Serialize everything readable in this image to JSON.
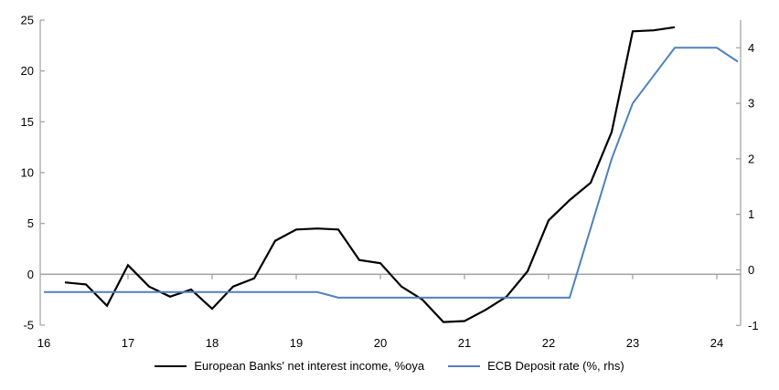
{
  "chart_data": {
    "type": "line",
    "grid": "zero-line-only",
    "legend_position": "bottom-center",
    "x_axis": {
      "ticks": [
        16,
        17,
        18,
        19,
        20,
        21,
        22,
        23,
        24
      ],
      "range": [
        16,
        24.3
      ]
    },
    "left_axis": {
      "ticks": [
        25,
        20,
        15,
        10,
        5,
        0,
        -5
      ],
      "range": [
        -5,
        25
      ]
    },
    "right_axis": {
      "ticks": [
        4,
        3,
        2,
        1,
        0,
        -1
      ],
      "range": [
        -1,
        4.5
      ]
    },
    "series": [
      {
        "name": "European Banks' net interest income, %oya",
        "axis": "left",
        "color": "#000000",
        "stroke_width": 2.2,
        "x": [
          16.25,
          16.5,
          16.75,
          17.0,
          17.25,
          17.5,
          17.75,
          18.0,
          18.25,
          18.5,
          18.75,
          19.0,
          19.25,
          19.5,
          19.75,
          20.0,
          20.25,
          20.5,
          20.75,
          21.0,
          21.25,
          21.5,
          21.75,
          22.0,
          22.25,
          22.5,
          22.75,
          23.0,
          23.25,
          23.5
        ],
        "values": [
          -0.8,
          -1.0,
          -3.1,
          0.9,
          -1.2,
          -2.2,
          -1.5,
          -3.4,
          -1.2,
          -0.4,
          3.3,
          4.4,
          4.5,
          4.4,
          1.4,
          1.1,
          -1.2,
          -2.5,
          -4.7,
          -4.6,
          -3.5,
          -2.2,
          0.3,
          5.3,
          7.3,
          9.0,
          14.0,
          23.9,
          24.0,
          24.3
        ]
      },
      {
        "name": "ECB Deposit rate (%, rhs)",
        "axis": "right",
        "color": "#4f81bd",
        "stroke_width": 2,
        "x": [
          16.0,
          16.25,
          16.5,
          16.75,
          17.0,
          17.25,
          17.5,
          17.75,
          18.0,
          18.25,
          18.5,
          18.75,
          19.0,
          19.25,
          19.5,
          19.75,
          20.0,
          20.25,
          20.5,
          20.75,
          21.0,
          21.25,
          21.5,
          21.75,
          22.0,
          22.25,
          22.5,
          22.75,
          23.0,
          23.25,
          23.5,
          23.75,
          24.0,
          24.25
        ],
        "values": [
          -0.4,
          -0.4,
          -0.4,
          -0.4,
          -0.4,
          -0.4,
          -0.4,
          -0.4,
          -0.4,
          -0.4,
          -0.4,
          -0.4,
          -0.4,
          -0.4,
          -0.5,
          -0.5,
          -0.5,
          -0.5,
          -0.5,
          -0.5,
          -0.5,
          -0.5,
          -0.5,
          -0.5,
          -0.5,
          -0.5,
          0.75,
          2.0,
          3.0,
          3.5,
          4.0,
          4.0,
          4.0,
          3.75
        ]
      }
    ]
  },
  "colors": {
    "axis_line": "#a6a6a6",
    "tick_text": "#000000",
    "background": "#ffffff"
  }
}
